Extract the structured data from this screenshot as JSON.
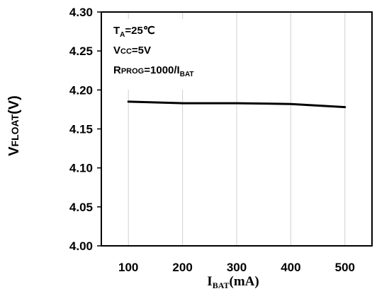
{
  "chart_data": {
    "type": "line",
    "title": "",
    "ylabel": {
      "main": "V",
      "sub": "FLOAT",
      "unit": "(V)"
    },
    "xlabel": {
      "main": "I",
      "sub": "BAT",
      "unit": "(mA)"
    },
    "xlim": [
      50,
      550
    ],
    "ylim": [
      4.0,
      4.3
    ],
    "xticks": [
      "100",
      "200",
      "300",
      "400",
      "500"
    ],
    "yticks": [
      "4.00",
      "4.05",
      "4.10",
      "4.15",
      "4.20",
      "4.25",
      "4.30"
    ],
    "grid": "vertical",
    "series": [
      {
        "x": [
          100,
          200,
          300,
          400,
          500
        ],
        "y": [
          4.185,
          4.183,
          4.183,
          4.182,
          4.178
        ]
      }
    ],
    "annotations": {
      "ta": {
        "main": "T",
        "sub": "A",
        "rest": "=25℃"
      },
      "vcc": {
        "main": "V",
        "sub": "CC",
        "rest": "=5V"
      },
      "rprog": {
        "main": "R",
        "sub": "PROG",
        "rest": "=1000/I",
        "sub2": "BAT"
      }
    },
    "colors": {
      "line": "#000000",
      "grid": "#d0d0d0",
      "axis": "#000000"
    }
  }
}
